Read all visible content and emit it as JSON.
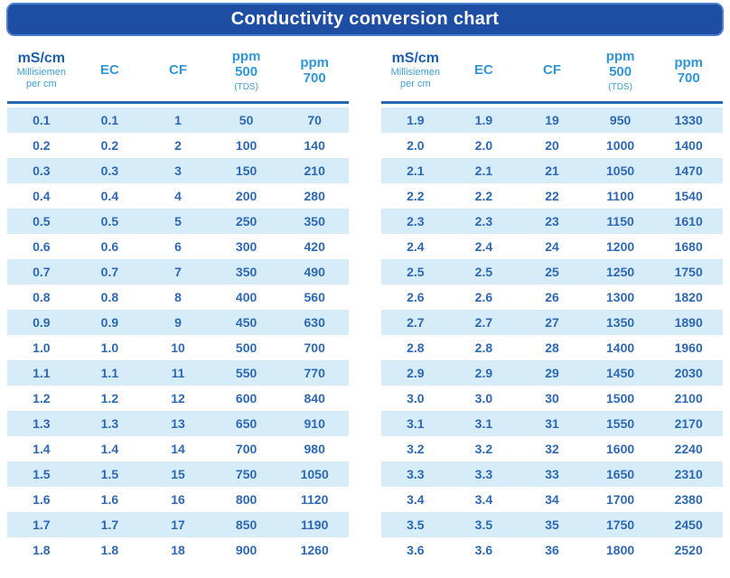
{
  "title": "Conductivity conversion chart",
  "header": {
    "col1": {
      "main": "mS/cm",
      "sub1": "Millisiemen",
      "sub2": "per cm"
    },
    "col2": "EC",
    "col3": "CF",
    "col4": {
      "line1": "ppm",
      "line2": "500",
      "sub": "(TDS)"
    },
    "col5": {
      "line1": "ppm",
      "line2": "700"
    }
  },
  "colors": {
    "title_bar_fill": "#1d4ea3",
    "title_bar_border": "#4a7ed2",
    "title_text": "#ffffff",
    "header_dark_blue": "#1d5fae",
    "header_sky_blue": "#2f97d7",
    "header_underline": "#2a67b2",
    "row_band": "#d7ecf9",
    "data_text": "#2d68b4"
  },
  "chart_data": {
    "type": "table",
    "title": "Conductivity conversion chart",
    "columns": [
      "mS/cm Millisiemen per cm",
      "EC",
      "CF",
      "ppm 500 (TDS)",
      "ppm 700"
    ],
    "tables": [
      {
        "rows": [
          [
            "0.1",
            "0.1",
            "1",
            "50",
            "70"
          ],
          [
            "0.2",
            "0.2",
            "2",
            "100",
            "140"
          ],
          [
            "0.3",
            "0.3",
            "3",
            "150",
            "210"
          ],
          [
            "0.4",
            "0.4",
            "4",
            "200",
            "280"
          ],
          [
            "0.5",
            "0.5",
            "5",
            "250",
            "350"
          ],
          [
            "0.6",
            "0.6",
            "6",
            "300",
            "420"
          ],
          [
            "0.7",
            "0.7",
            "7",
            "350",
            "490"
          ],
          [
            "0.8",
            "0.8",
            "8",
            "400",
            "560"
          ],
          [
            "0.9",
            "0.9",
            "9",
            "450",
            "630"
          ],
          [
            "1.0",
            "1.0",
            "10",
            "500",
            "700"
          ],
          [
            "1.1",
            "1.1",
            "11",
            "550",
            "770"
          ],
          [
            "1.2",
            "1.2",
            "12",
            "600",
            "840"
          ],
          [
            "1.3",
            "1.3",
            "13",
            "650",
            "910"
          ],
          [
            "1.4",
            "1.4",
            "14",
            "700",
            "980"
          ],
          [
            "1.5",
            "1.5",
            "15",
            "750",
            "1050"
          ],
          [
            "1.6",
            "1.6",
            "16",
            "800",
            "1120"
          ],
          [
            "1.7",
            "1.7",
            "17",
            "850",
            "1190"
          ],
          [
            "1.8",
            "1.8",
            "18",
            "900",
            "1260"
          ]
        ]
      },
      {
        "rows": [
          [
            "1.9",
            "1.9",
            "19",
            "950",
            "1330"
          ],
          [
            "2.0",
            "2.0",
            "20",
            "1000",
            "1400"
          ],
          [
            "2.1",
            "2.1",
            "21",
            "1050",
            "1470"
          ],
          [
            "2.2",
            "2.2",
            "22",
            "1100",
            "1540"
          ],
          [
            "2.3",
            "2.3",
            "23",
            "1150",
            "1610"
          ],
          [
            "2.4",
            "2.4",
            "24",
            "1200",
            "1680"
          ],
          [
            "2.5",
            "2.5",
            "25",
            "1250",
            "1750"
          ],
          [
            "2.6",
            "2.6",
            "26",
            "1300",
            "1820"
          ],
          [
            "2.7",
            "2.7",
            "27",
            "1350",
            "1890"
          ],
          [
            "2.8",
            "2.8",
            "28",
            "1400",
            "1960"
          ],
          [
            "2.9",
            "2.9",
            "29",
            "1450",
            "2030"
          ],
          [
            "3.0",
            "3.0",
            "30",
            "1500",
            "2100"
          ],
          [
            "3.1",
            "3.1",
            "31",
            "1550",
            "2170"
          ],
          [
            "3.2",
            "3.2",
            "32",
            "1600",
            "2240"
          ],
          [
            "3.3",
            "3.3",
            "33",
            "1650",
            "2310"
          ],
          [
            "3.4",
            "3.4",
            "34",
            "1700",
            "2380"
          ],
          [
            "3.5",
            "3.5",
            "35",
            "1750",
            "2450"
          ],
          [
            "3.6",
            "3.6",
            "36",
            "1800",
            "2520"
          ]
        ]
      }
    ]
  }
}
